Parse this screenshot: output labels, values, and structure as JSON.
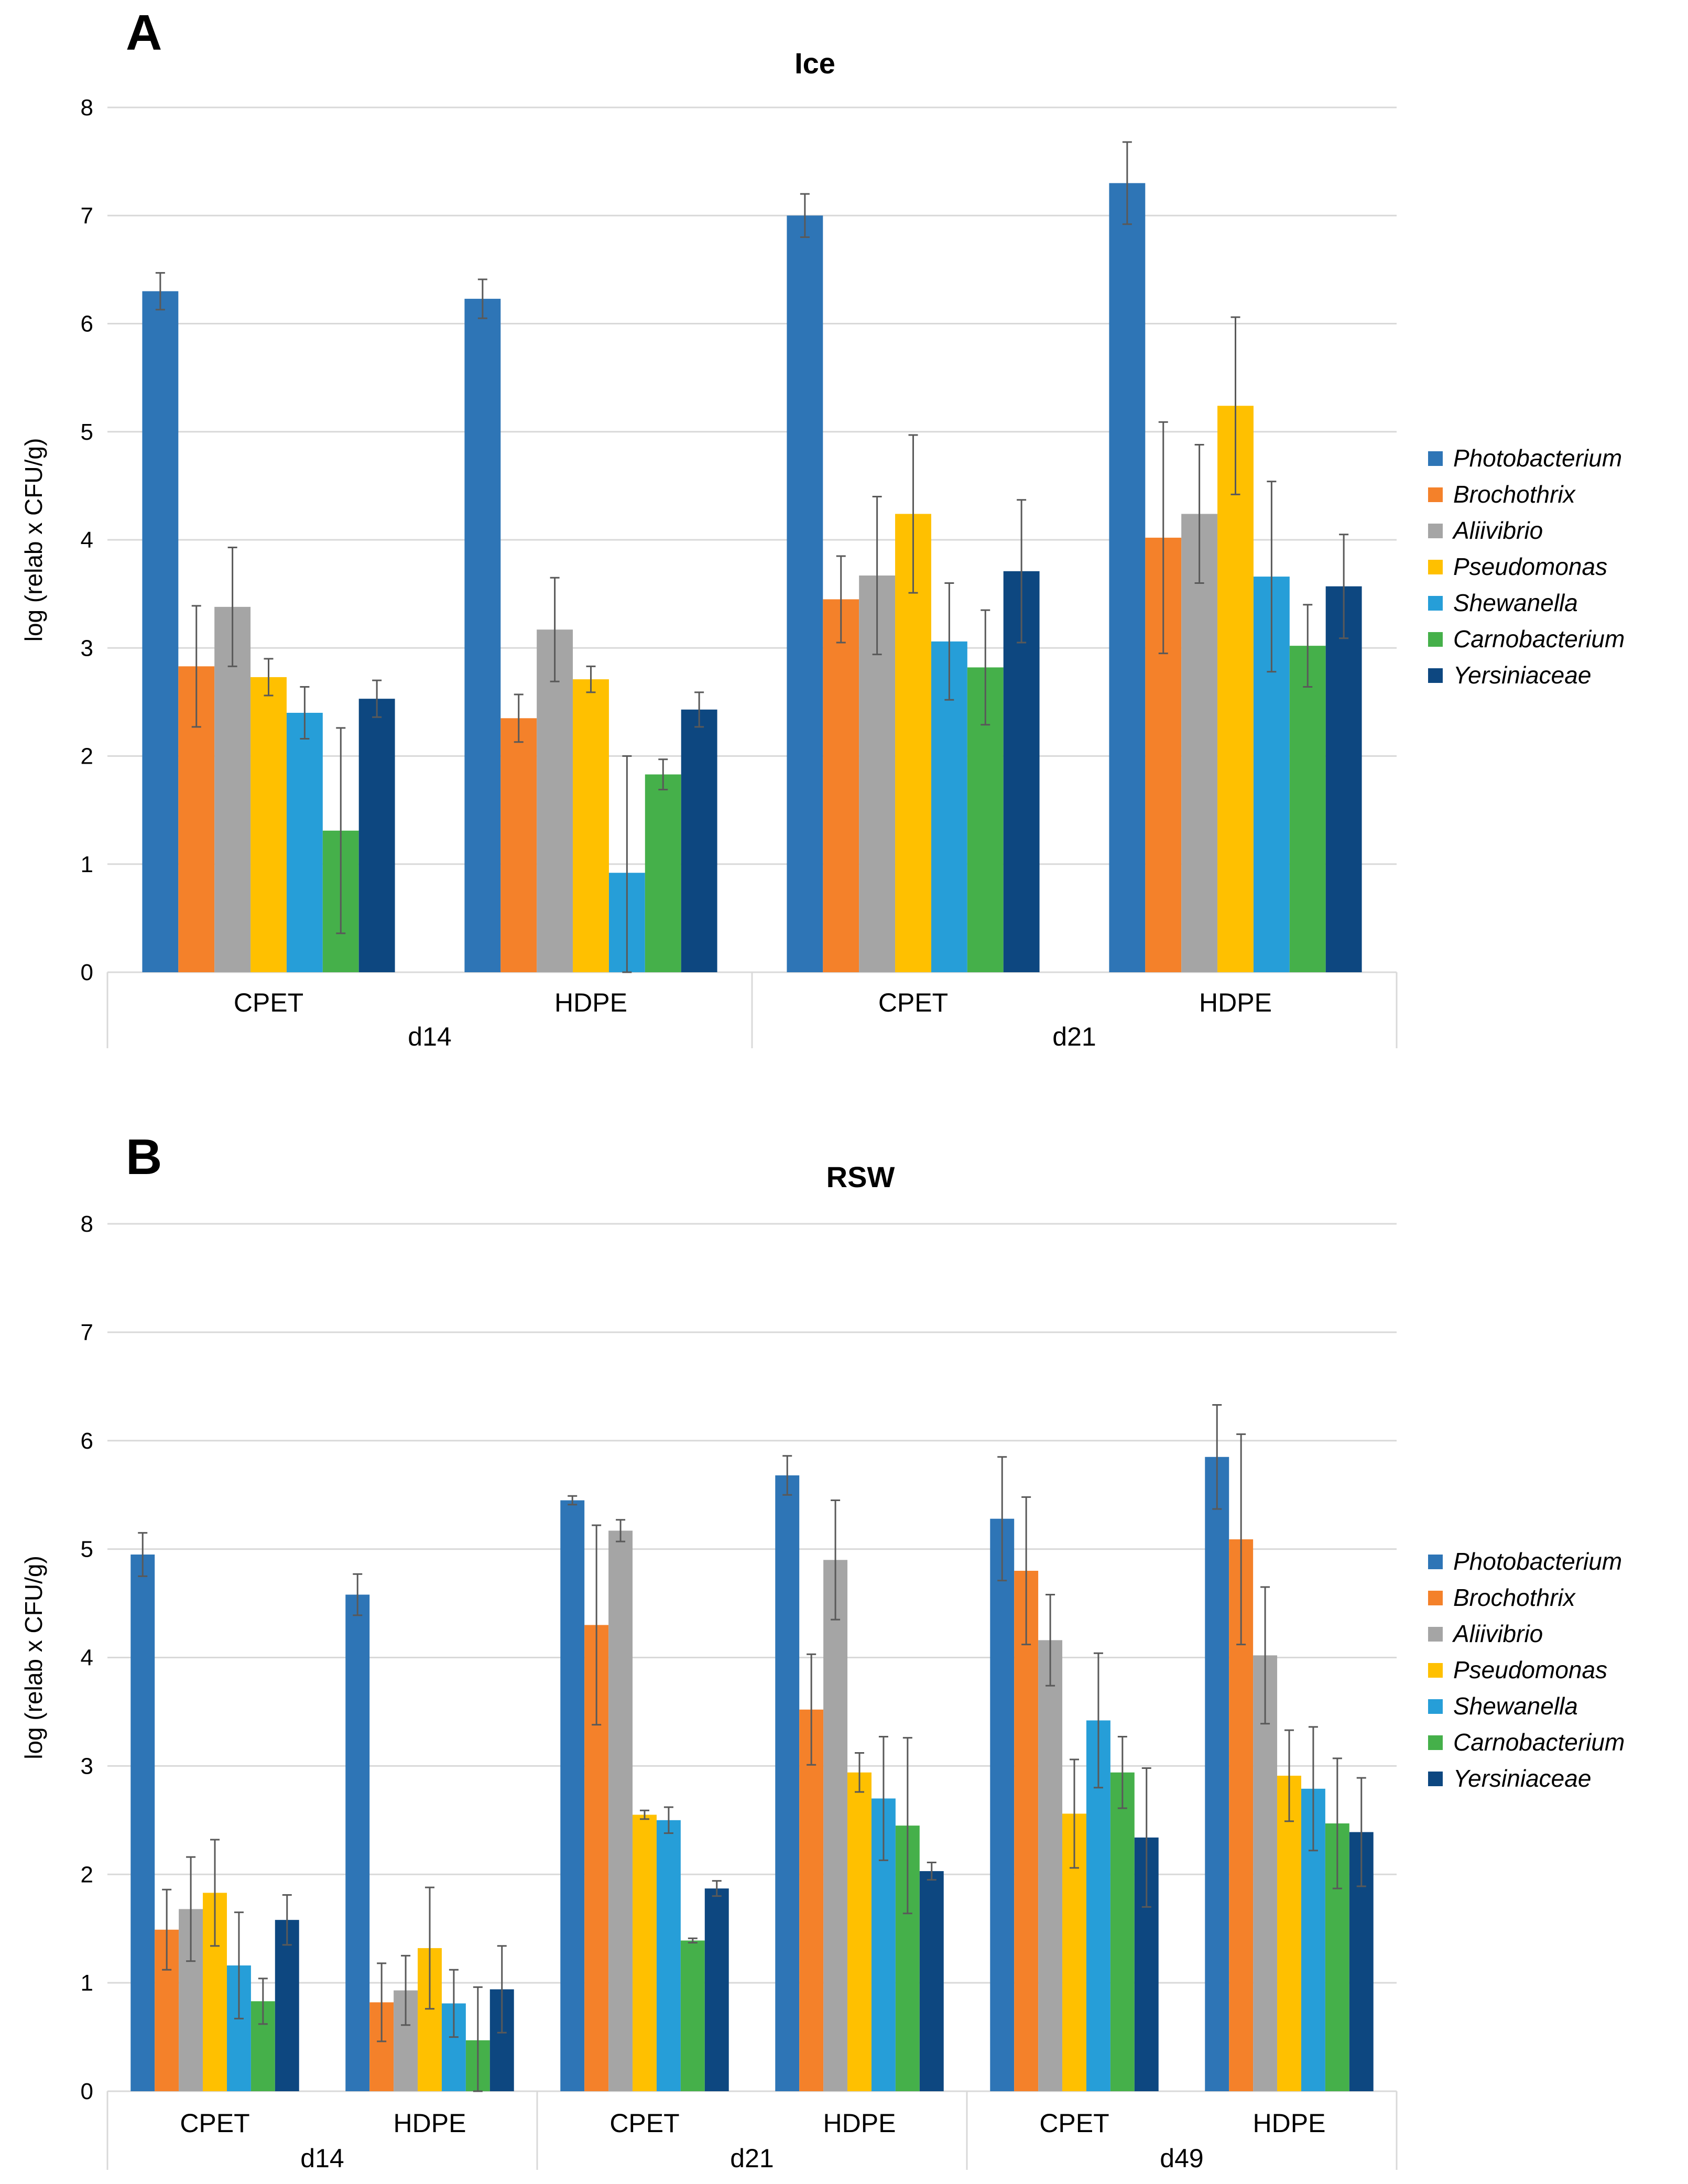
{
  "figure": {
    "panel_letters": [
      "A",
      "B"
    ]
  },
  "species": [
    {
      "name": "Photobacterium",
      "color": "#2E75B6"
    },
    {
      "name": "Brochothrix",
      "color": "#F4812A"
    },
    {
      "name": "Aliivibrio",
      "color": "#A5A5A5"
    },
    {
      "name": "Pseudomonas",
      "color": "#FFC000"
    },
    {
      "name": "Shewanella",
      "color": "#269ED8"
    },
    {
      "name": "Carnobacterium",
      "color": "#45B04A"
    },
    {
      "name": "Yersiniaceae",
      "color": "#0D4780"
    }
  ],
  "chart_data": [
    {
      "type": "bar",
      "panel": "A",
      "title": "Ice",
      "ylabel": "log  (relab x CFU/g)",
      "ylim": [
        0,
        8
      ],
      "yticks": [
        0,
        1,
        2,
        3,
        4,
        5,
        6,
        7,
        8
      ],
      "grid": true,
      "legend": "right",
      "groups": [
        {
          "label": "d14",
          "categories": [
            "CPET",
            "HDPE"
          ]
        },
        {
          "label": "d21",
          "categories": [
            "CPET",
            "HDPE"
          ]
        }
      ],
      "series": [
        {
          "name": "Photobacterium",
          "values": [
            6.3,
            6.23,
            7.0,
            7.3
          ],
          "errors": [
            0.17,
            0.18,
            0.2,
            0.38
          ]
        },
        {
          "name": "Brochothrix",
          "values": [
            2.83,
            2.35,
            3.45,
            4.02
          ],
          "errors": [
            0.56,
            0.22,
            0.4,
            1.07
          ]
        },
        {
          "name": "Aliivibrio",
          "values": [
            3.38,
            3.17,
            3.67,
            4.24
          ],
          "errors": [
            0.55,
            0.48,
            0.73,
            0.64
          ]
        },
        {
          "name": "Pseudomonas",
          "values": [
            2.73,
            2.71,
            4.24,
            5.24
          ],
          "errors": [
            0.17,
            0.12,
            0.73,
            0.82
          ]
        },
        {
          "name": "Shewanella",
          "values": [
            2.4,
            0.92,
            3.06,
            3.66
          ],
          "errors": [
            0.24,
            1.08,
            0.54,
            0.88
          ]
        },
        {
          "name": "Carnobacterium",
          "values": [
            1.31,
            1.83,
            2.82,
            3.02
          ],
          "errors": [
            0.95,
            0.14,
            0.53,
            0.38
          ]
        },
        {
          "name": "Yersiniaceae",
          "values": [
            2.53,
            2.43,
            3.71,
            3.57
          ],
          "errors": [
            0.17,
            0.16,
            0.66,
            0.48
          ]
        }
      ]
    },
    {
      "type": "bar",
      "panel": "B",
      "title": "RSW",
      "ylabel": "log  (relab x CFU/g)",
      "ylim": [
        0,
        8
      ],
      "yticks": [
        0,
        1,
        2,
        3,
        4,
        5,
        6,
        7,
        8
      ],
      "grid": true,
      "legend": "right",
      "groups": [
        {
          "label": "d14",
          "categories": [
            "CPET",
            "HDPE"
          ]
        },
        {
          "label": "d21",
          "categories": [
            "CPET",
            "HDPE"
          ]
        },
        {
          "label": "d49",
          "categories": [
            "CPET",
            "HDPE"
          ]
        }
      ],
      "series": [
        {
          "name": "Photobacterium",
          "values": [
            4.95,
            4.58,
            5.45,
            5.68,
            5.28,
            5.85
          ],
          "errors": [
            0.2,
            0.19,
            0.04,
            0.18,
            0.57,
            0.48
          ]
        },
        {
          "name": "Brochothrix",
          "values": [
            1.49,
            0.82,
            4.3,
            3.52,
            4.8,
            5.09
          ],
          "errors": [
            0.37,
            0.36,
            0.92,
            0.51,
            0.68,
            0.97
          ]
        },
        {
          "name": "Aliivibrio",
          "values": [
            1.68,
            0.93,
            5.17,
            4.9,
            4.16,
            4.02
          ],
          "errors": [
            0.48,
            0.32,
            0.1,
            0.55,
            0.42,
            0.63
          ]
        },
        {
          "name": "Pseudomonas",
          "values": [
            1.83,
            1.32,
            2.55,
            2.94,
            2.56,
            2.91
          ],
          "errors": [
            0.49,
            0.56,
            0.04,
            0.18,
            0.5,
            0.42
          ]
        },
        {
          "name": "Shewanella",
          "values": [
            1.16,
            0.81,
            2.5,
            2.7,
            3.42,
            2.79
          ],
          "errors": [
            0.49,
            0.31,
            0.12,
            0.57,
            0.62,
            0.57
          ]
        },
        {
          "name": "Carnobacterium",
          "values": [
            0.83,
            0.47,
            1.39,
            2.45,
            2.94,
            2.47
          ],
          "errors": [
            0.21,
            0.49,
            0.02,
            0.81,
            0.33,
            0.6
          ]
        },
        {
          "name": "Yersiniaceae",
          "values": [
            1.58,
            0.94,
            1.87,
            2.03,
            2.34,
            2.39
          ],
          "errors": [
            0.23,
            0.4,
            0.07,
            0.08,
            0.64,
            0.5
          ]
        }
      ]
    }
  ]
}
